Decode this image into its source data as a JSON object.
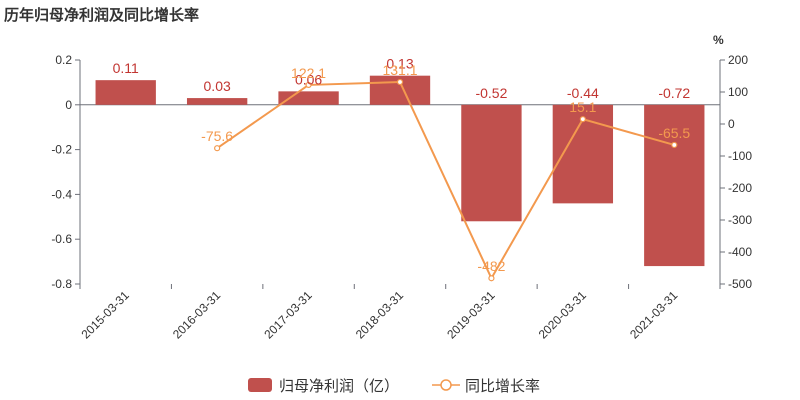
{
  "chart_data": {
    "type": "bar",
    "title": "历年归母净利润及同比增长率",
    "categories": [
      "2015-03-31",
      "2016-03-31",
      "2017-03-31",
      "2018-03-31",
      "2019-03-31",
      "2020-03-31",
      "2021-03-31"
    ],
    "series": [
      {
        "name": "归母净利润（亿）",
        "type": "bar",
        "axis": "left",
        "color": "#c0504d",
        "values": [
          0.11,
          0.03,
          0.06,
          0.13,
          -0.52,
          -0.44,
          -0.72
        ],
        "labels": [
          "0.11",
          "0.03",
          "0.06",
          "0.13",
          "-0.52",
          "-0.44",
          "-0.72"
        ]
      },
      {
        "name": "同比增长率",
        "type": "line",
        "axis": "right",
        "color": "#f3994e",
        "values": [
          null,
          -75.6,
          122.1,
          131.1,
          -482,
          15.1,
          -65.5
        ],
        "labels": [
          "",
          "-75.6",
          "122.1",
          "131.1",
          "-482",
          "15.1",
          "-65.5"
        ]
      }
    ],
    "y_left": {
      "ylim": [
        -0.8,
        0.2
      ],
      "ticks": [
        "0.2",
        "0",
        "-0.2",
        "-0.4",
        "-0.6",
        "-0.8"
      ],
      "tick_values": [
        0.2,
        0,
        -0.2,
        -0.4,
        -0.6,
        -0.8
      ]
    },
    "y_right": {
      "label": "%",
      "ylim": [
        -500,
        200
      ],
      "ticks": [
        "200",
        "100",
        "0",
        "-100",
        "-200",
        "-300",
        "-400",
        "-500"
      ],
      "tick_values": [
        200,
        100,
        0,
        -100,
        -200,
        -300,
        -400,
        -500
      ]
    },
    "grid": false,
    "legend_position": "bottom-center"
  }
}
